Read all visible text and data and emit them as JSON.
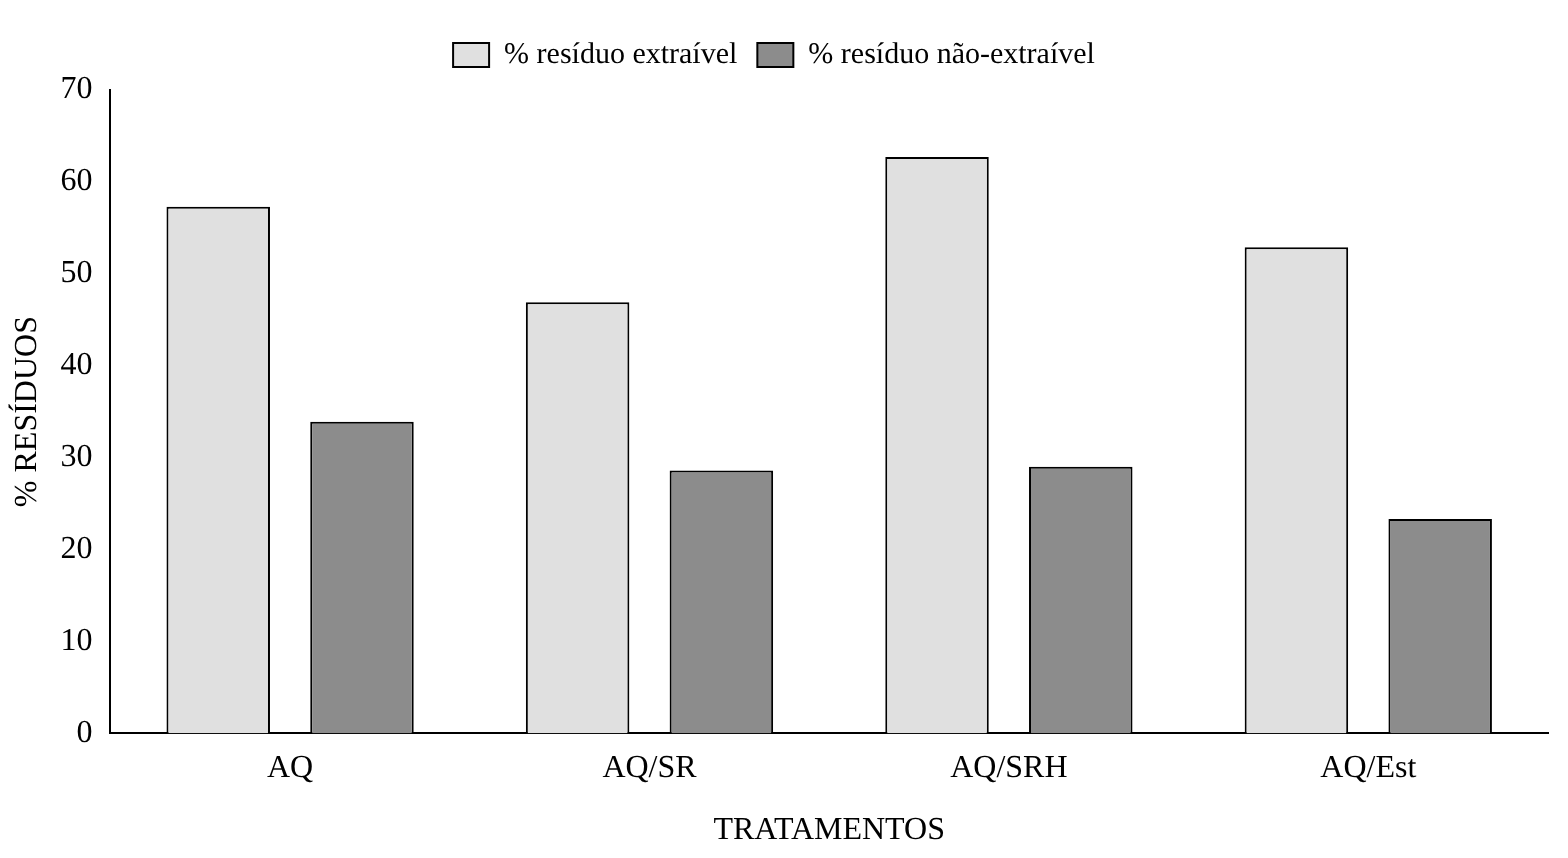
{
  "chart_data": {
    "type": "bar",
    "xlabel": "TRATAMENTOS",
    "ylabel": "% RESÍDUOS",
    "categories": [
      "AQ",
      "AQ/SR",
      "AQ/SRH",
      "AQ/Est"
    ],
    "series": [
      {
        "name": "% resíduo extraível",
        "color": "#e0e0e0",
        "values": [
          57.3,
          46.9,
          62.7,
          52.9
        ]
      },
      {
        "name": "% resíduo não-extraível",
        "color": "#8c8c8c",
        "values": [
          33.9,
          28.6,
          29.0,
          23.3
        ]
      }
    ],
    "ylim": [
      0,
      70
    ],
    "yticks": [
      0,
      10,
      20,
      30,
      40,
      50,
      60,
      70
    ],
    "grid": false,
    "legend": "top"
  }
}
